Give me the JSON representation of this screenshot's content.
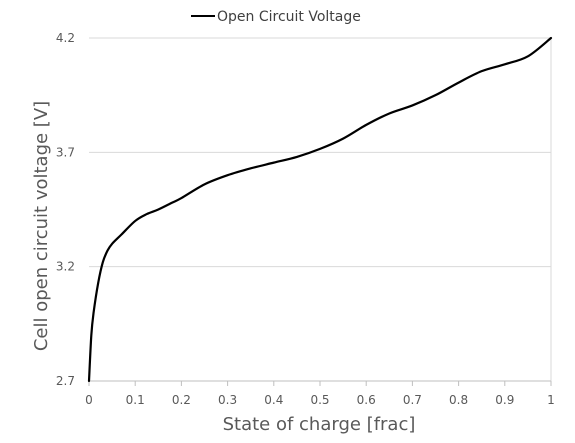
{
  "chart_data": {
    "type": "line",
    "title": "",
    "xlabel": "State of charge [frac]",
    "ylabel": "Cell open circuit voltage [V]",
    "xlim": [
      0,
      1
    ],
    "ylim": [
      2.7,
      4.2
    ],
    "x_ticks": [
      0,
      0.1,
      0.2,
      0.3,
      0.4,
      0.5,
      0.6,
      0.7,
      0.8,
      0.9,
      1
    ],
    "x_tick_labels": [
      "0",
      "0.1",
      "0.2",
      "0.3",
      "0.4",
      "0.5",
      "0.6",
      "0.7",
      "0.8",
      "0.9",
      "1"
    ],
    "y_ticks": [
      2.7,
      3.2,
      3.7,
      4.2
    ],
    "y_tick_labels": [
      "2.7",
      "3.2",
      "3.7",
      "4.2"
    ],
    "grid": true,
    "legend": {
      "position": "top-center",
      "entries": [
        "Open Circuit Voltage"
      ]
    },
    "series": [
      {
        "name": "Open Circuit Voltage",
        "color": "#000000",
        "x": [
          0,
          0.005,
          0.01,
          0.02,
          0.03,
          0.04,
          0.05,
          0.07,
          0.1,
          0.125,
          0.15,
          0.18,
          0.2,
          0.25,
          0.3,
          0.35,
          0.4,
          0.45,
          0.5,
          0.55,
          0.6,
          0.65,
          0.7,
          0.75,
          0.8,
          0.85,
          0.9,
          0.95,
          1.0
        ],
        "y": [
          2.7,
          2.9,
          3.0,
          3.13,
          3.22,
          3.27,
          3.3,
          3.34,
          3.4,
          3.43,
          3.45,
          3.48,
          3.5,
          3.56,
          3.6,
          3.63,
          3.655,
          3.68,
          3.715,
          3.76,
          3.82,
          3.87,
          3.905,
          3.95,
          4.005,
          4.055,
          4.085,
          4.12,
          4.2
        ]
      }
    ]
  }
}
